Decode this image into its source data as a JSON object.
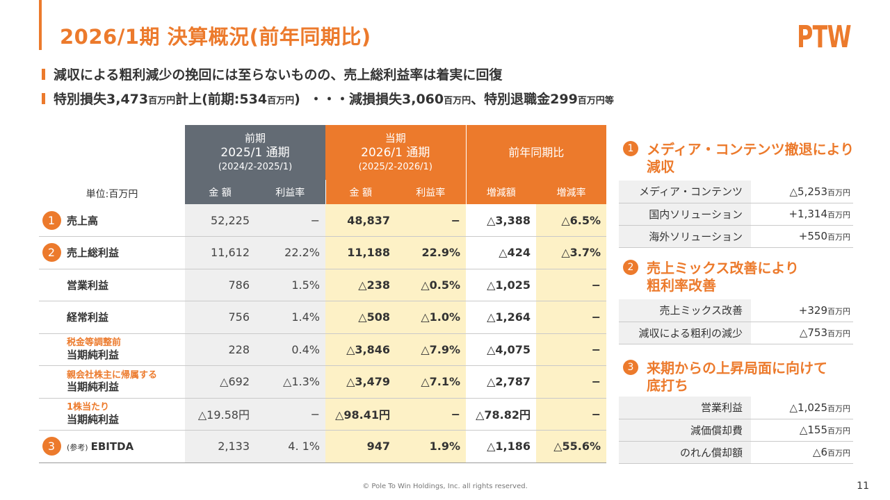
{
  "header": {
    "title": "2026/1期 決算概況(前年同期比)",
    "logo": "PTW"
  },
  "bullets": [
    {
      "text": "減収による粗利減少の挽回には至らないものの、売上総利益率は着実に回復"
    },
    {
      "parts": [
        "特別損失3,473",
        "百万円",
        "計上(前期:534",
        "百万円",
        ")  ・・・減損損失3,060",
        "百万円",
        "、特別退職金299",
        "百万円",
        "等"
      ]
    }
  ],
  "table": {
    "unit": "単位:百万円",
    "groups": {
      "prev": {
        "l1": "前期",
        "l2": "2025/1 通期",
        "l3": "(2024/2-2025/1)"
      },
      "cur": {
        "l1": "当期",
        "l2": "2026/1 通期",
        "l3": "(2025/2-2026/1)"
      },
      "cmp": {
        "l1": "前年同期比"
      }
    },
    "subheaders": [
      "金 額",
      "利益率",
      "金 額",
      "利益率",
      "増減額",
      "増減率"
    ],
    "rows": [
      {
        "num": "1",
        "label": "売上高",
        "prev_amt": "52,225",
        "prev_rate": "−",
        "cur_amt": "48,837",
        "cur_rate": "−",
        "chg_amt": "△3,388",
        "chg_rate": "△6.5%"
      },
      {
        "num": "2",
        "label": "売上総利益",
        "prev_amt": "11,612",
        "prev_rate": "22.2%",
        "cur_amt": "11,188",
        "cur_rate": "22.9%",
        "chg_amt": "△424",
        "chg_rate": "△3.7%"
      },
      {
        "num": "",
        "label": "営業利益",
        "prev_amt": "786",
        "prev_rate": "1.5%",
        "cur_amt": "△238",
        "cur_rate": "△0.5%",
        "chg_amt": "△1,025",
        "chg_rate": "−"
      },
      {
        "num": "",
        "label": "経常利益",
        "prev_amt": "756",
        "prev_rate": "1.4%",
        "cur_amt": "△508",
        "cur_rate": "△1.0%",
        "chg_amt": "△1,264",
        "chg_rate": "−"
      },
      {
        "num": "",
        "label_top": "税金等調整前",
        "label": "当期純利益",
        "prev_amt": "228",
        "prev_rate": "0.4%",
        "cur_amt": "△3,846",
        "cur_rate": "△7.9%",
        "chg_amt": "△4,075",
        "chg_rate": "−"
      },
      {
        "num": "",
        "label_top": "親会社株主に帰属する",
        "label": "当期純利益",
        "prev_amt": "△692",
        "prev_rate": "△1.3%",
        "cur_amt": "△3,479",
        "cur_rate": "△7.1%",
        "chg_amt": "△2,787",
        "chg_rate": "−"
      },
      {
        "num": "",
        "label_top": "1株当たり",
        "label": "当期純利益",
        "prev_amt": "△19.58円",
        "prev_rate": "−",
        "cur_amt": "△98.41円",
        "cur_rate": "−",
        "chg_amt": "△78.82円",
        "chg_rate": "−"
      },
      {
        "num": "3",
        "label_prefix": "(参考)",
        "label": "EBITDA",
        "prev_amt": "2,133",
        "prev_rate": "4. 1%",
        "cur_amt": "947",
        "cur_rate": "1.9%",
        "chg_amt": "△1,186",
        "chg_rate": "△55.6%"
      }
    ]
  },
  "right": {
    "unit_suffix": "百万円",
    "sections": [
      {
        "num": "1",
        "line1": "メディア・コンテンツ撤退により",
        "line2": "減収",
        "items": [
          {
            "label": "メディア・コンテンツ",
            "value": "△5,253"
          },
          {
            "label": "国内ソリューション",
            "value": "+1,314"
          },
          {
            "label": "海外ソリューション",
            "value": "+550"
          }
        ]
      },
      {
        "num": "2",
        "line1": "売上ミックス改善により",
        "line2": "粗利率改善",
        "items": [
          {
            "label": "売上ミックス改善",
            "value": "+329"
          },
          {
            "label": "減収による粗利の減少",
            "value": "△753"
          }
        ]
      },
      {
        "num": "3",
        "line1": "来期からの上昇局面に向けて",
        "line2": "底打ち",
        "items": [
          {
            "label": "営業利益",
            "value": "△1,025"
          },
          {
            "label": "減価償却費",
            "value": "△155"
          },
          {
            "label": "のれん償却額",
            "value": "△6"
          }
        ]
      }
    ]
  },
  "footer": {
    "copyright": "© Pole To Win Holdings, Inc. all rights reserved.",
    "page": "11"
  },
  "colors": {
    "accent": "#ec7a2c",
    "prev_header": "#636b74",
    "current_fill": "#fdf1c6"
  }
}
